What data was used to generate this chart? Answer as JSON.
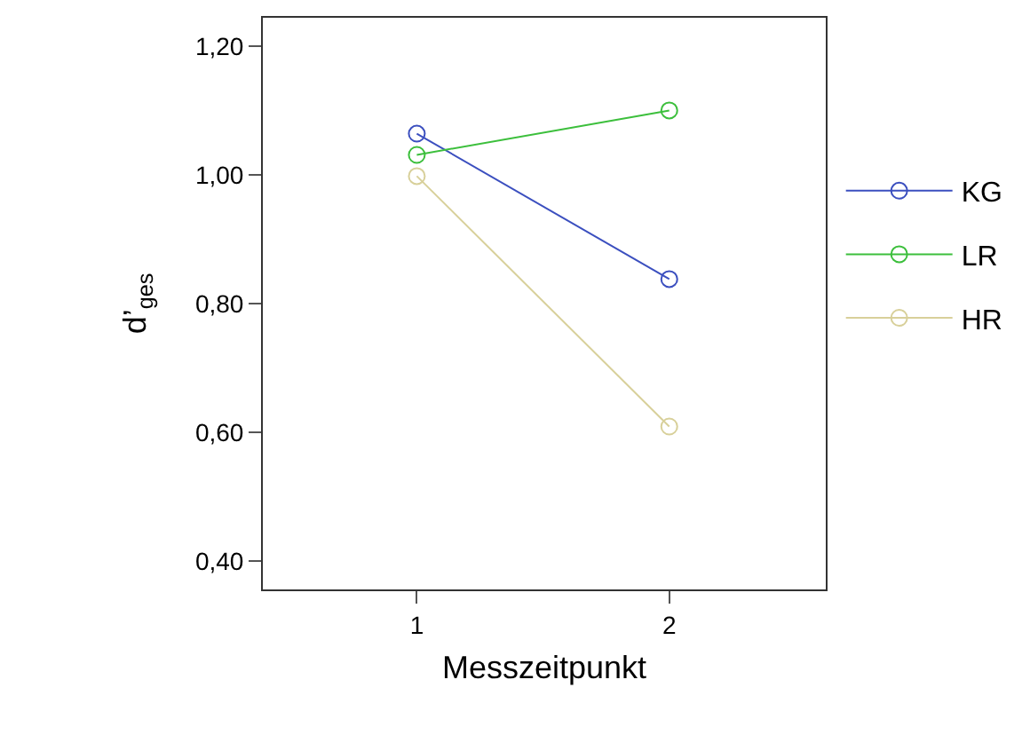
{
  "chart_data": {
    "type": "line",
    "xlabel": "Messzeitpunkt",
    "ylabel": "d’$_{ges}$",
    "x": [
      1,
      2
    ],
    "xlim": [
      0.39,
      2.62
    ],
    "xticks": [
      1,
      2
    ],
    "ylim": [
      0.356,
      1.244
    ],
    "yticks": [
      {
        "value": 0.4,
        "label": "0,40"
      },
      {
        "value": 0.6,
        "label": "0,60"
      },
      {
        "value": 0.8,
        "label": "0,80"
      },
      {
        "value": 1.0,
        "label": "1,00"
      },
      {
        "value": 1.2,
        "label": "1,20"
      }
    ],
    "series": [
      {
        "name": "KG",
        "color": "#3b4fbf",
        "values": [
          1.064,
          0.838
        ]
      },
      {
        "name": "LR",
        "color": "#3cbf3c",
        "values": [
          1.031,
          1.1
        ]
      },
      {
        "name": "HR",
        "color": "#d8d09a",
        "values": [
          0.998,
          0.609
        ]
      }
    ],
    "marker": "circle",
    "legend": "right",
    "grid": false
  }
}
